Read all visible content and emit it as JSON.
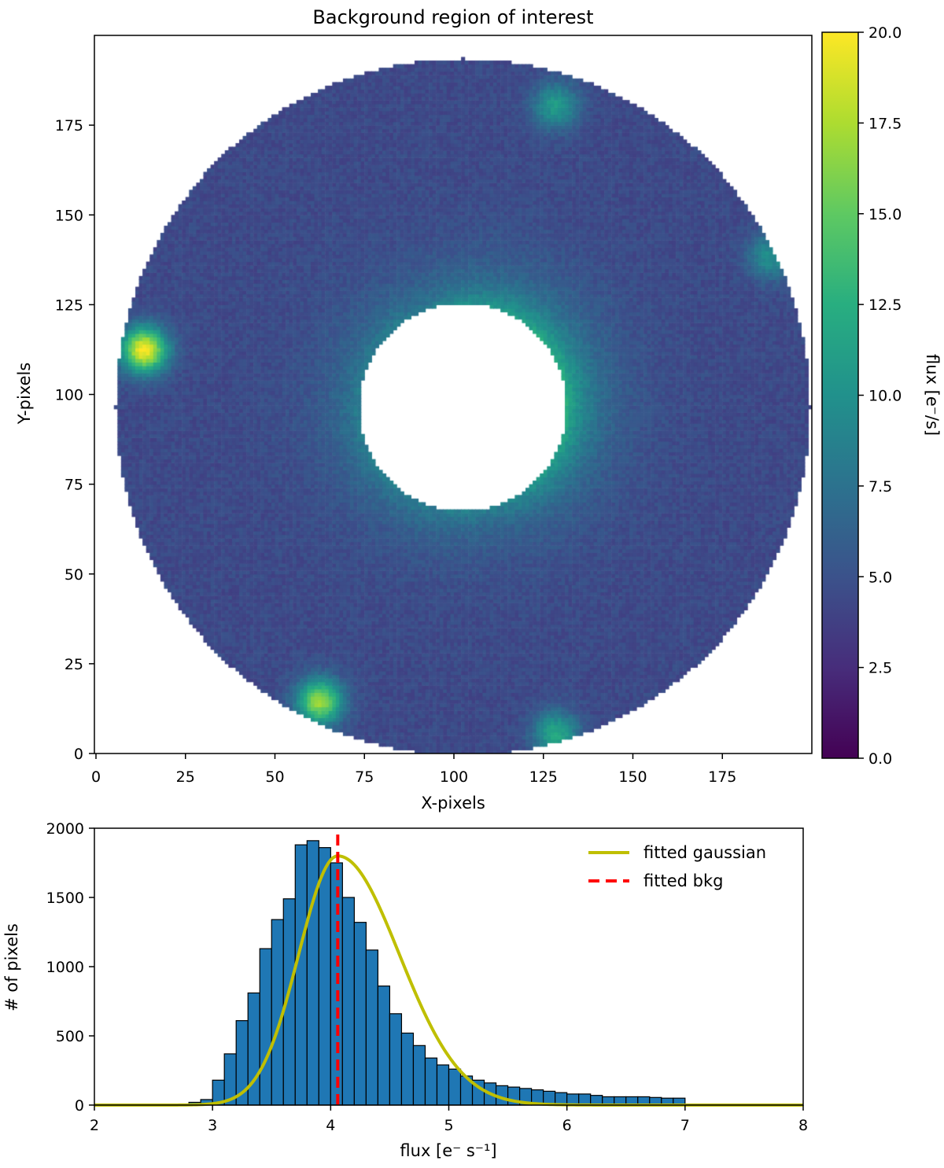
{
  "chart_data": [
    {
      "type": "heatmap",
      "title": "Background region of interest",
      "xlabel": "X-pixels",
      "ylabel": "Y-pixels",
      "xlim": [
        0,
        200
      ],
      "ylim": [
        0,
        200
      ],
      "xticks": [
        0,
        25,
        50,
        75,
        100,
        125,
        150,
        175
      ],
      "yticks": [
        0,
        25,
        50,
        75,
        100,
        125,
        150,
        175
      ],
      "colormap": "viridis",
      "center": [
        102,
        96
      ],
      "outer_radius": 97,
      "inner_radius": 29,
      "background_level": 4.5,
      "hotspots": [
        {
          "x": 13,
          "y": 112,
          "peak": 20
        },
        {
          "x": 62,
          "y": 14,
          "peak": 17
        },
        {
          "x": 128,
          "y": 5,
          "peak": 12
        },
        {
          "x": 128,
          "y": 180,
          "peak": 11
        },
        {
          "x": 188,
          "y": 138,
          "peak": 10
        }
      ],
      "colorbar": {
        "label": "flux [e⁻/s]",
        "range": [
          0.0,
          20.0
        ],
        "ticks": [
          "0.0",
          "2.5",
          "5.0",
          "7.5",
          "10.0",
          "12.5",
          "15.0",
          "17.5",
          "20.0"
        ]
      }
    },
    {
      "type": "bar",
      "xlabel": "flux [e⁻ s⁻¹]",
      "ylabel": "# of pixels",
      "xlim": [
        2,
        8
      ],
      "ylim": [
        0,
        2000
      ],
      "xticks": [
        "2",
        "3",
        "4",
        "5",
        "6",
        "7",
        "8"
      ],
      "yticks": [
        "0",
        "500",
        "1000",
        "1500",
        "2000"
      ],
      "bin_edges_start": 2.8,
      "bin_width": 0.1,
      "counts": [
        20,
        40,
        180,
        370,
        610,
        810,
        1130,
        1340,
        1490,
        1880,
        1910,
        1860,
        1750,
        1500,
        1320,
        1120,
        860,
        660,
        520,
        430,
        340,
        290,
        260,
        210,
        180,
        160,
        140,
        130,
        120,
        110,
        100,
        90,
        80,
        80,
        70,
        60,
        60,
        60,
        60,
        55,
        50,
        50
      ],
      "gaussian": {
        "name": "fitted gaussian",
        "color": "#bfbf00",
        "mu": 4.06,
        "amp": 1800,
        "sigma_left": 0.33,
        "sigma_right": 0.52
      },
      "bkg": {
        "name": "fitted bkg",
        "color": "#ff0000",
        "x": 4.06
      },
      "bar_color": "#1f77b4",
      "legend_position": "top-right"
    }
  ]
}
